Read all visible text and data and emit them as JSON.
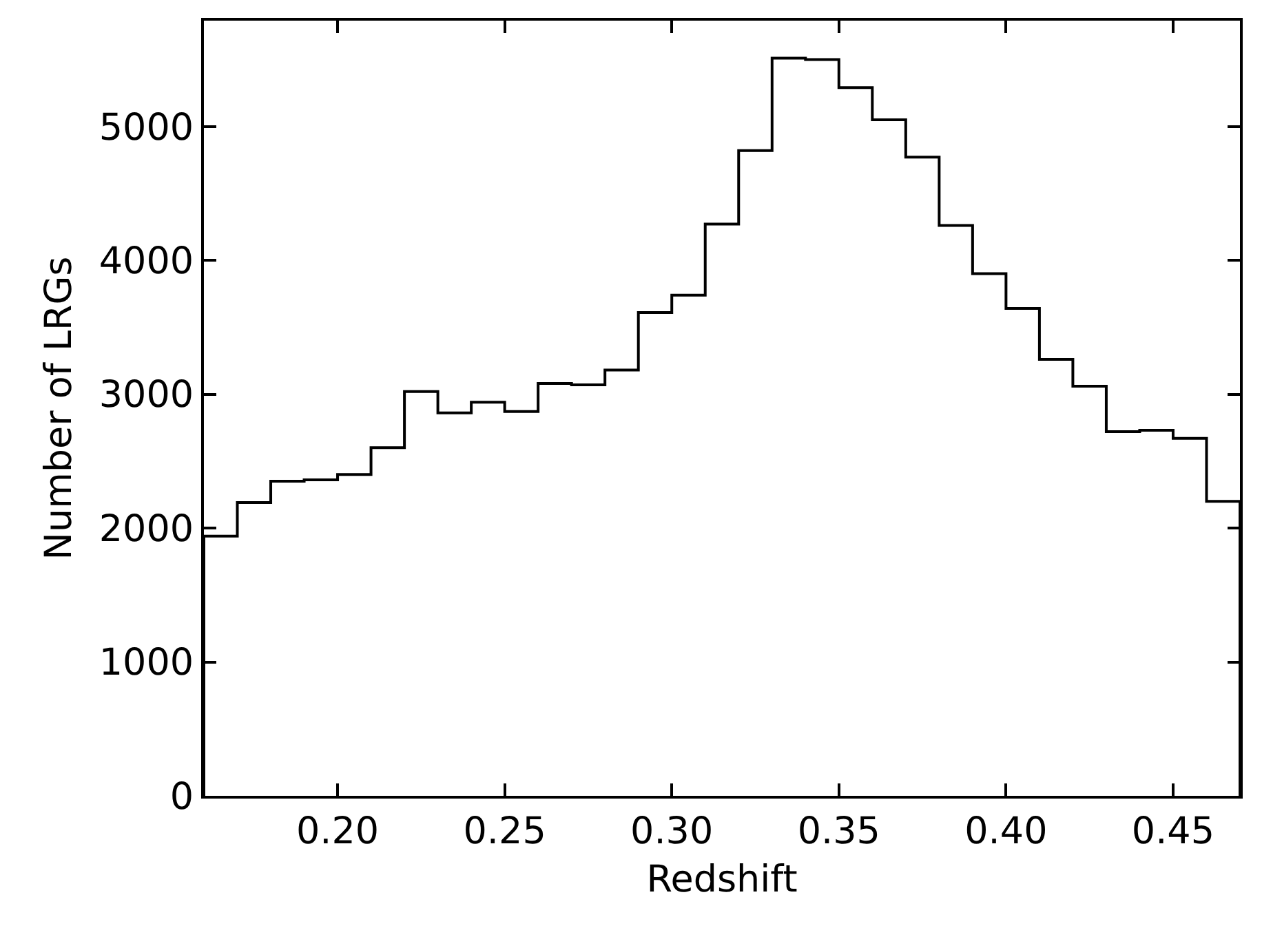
{
  "chart_data": {
    "type": "histogram",
    "xlabel": "Redshift",
    "ylabel": "Number of LRGs",
    "bins": [
      0.16,
      0.17,
      0.18,
      0.19,
      0.2,
      0.21,
      0.22,
      0.23,
      0.24,
      0.25,
      0.26,
      0.27,
      0.28,
      0.29,
      0.3,
      0.31,
      0.32,
      0.33,
      0.34,
      0.35,
      0.36,
      0.37,
      0.38,
      0.39,
      0.4,
      0.41,
      0.42,
      0.43,
      0.44,
      0.45,
      0.46,
      0.47
    ],
    "values": [
      1940,
      2190,
      2350,
      2360,
      2400,
      2600,
      3020,
      2860,
      2940,
      2870,
      3080,
      3070,
      3180,
      3610,
      3740,
      4270,
      4820,
      5510,
      5500,
      5290,
      5050,
      4770,
      4260,
      3900,
      3640,
      3260,
      3060,
      2720,
      2730,
      2670,
      2200
    ],
    "color": "#000000",
    "xlim": [
      0.16,
      0.47
    ],
    "xticks": [
      {
        "value": 0.2,
        "label": "0.20"
      },
      0.25,
      {
        "value": 0.3,
        "label": "0.30"
      },
      0.35,
      {
        "value": 0.4,
        "label": "0.40"
      },
      0.45
    ],
    "ylim": [
      0,
      5790
    ],
    "yticks": [
      0,
      1000,
      2000,
      3000,
      4000,
      5000
    ],
    "grid": false
  }
}
